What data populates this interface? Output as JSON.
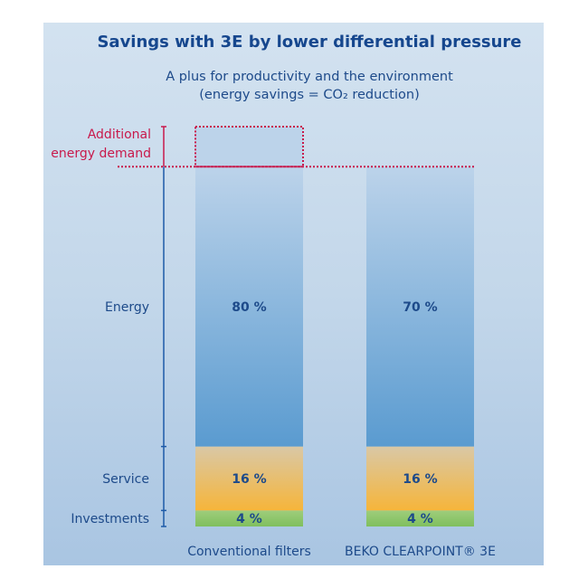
{
  "chart_data": {
    "type": "bar",
    "stacked": true,
    "title": "Savings with 3E by lower differential pressure",
    "subtitle_line1": "A plus for productivity and the environment",
    "subtitle_line2": "(energy savings = CO₂ reduction)",
    "categories": [
      "Conventional filters",
      "BEKO CLEARPOINT® 3E"
    ],
    "series": [
      {
        "name": "Investments",
        "values": [
          4,
          4
        ],
        "labels": [
          "4 %",
          "4 %"
        ],
        "color": "#8cc56a"
      },
      {
        "name": "Service",
        "values": [
          16,
          16
        ],
        "labels": [
          "16 %",
          "16 %"
        ],
        "color": "#f4b640"
      },
      {
        "name": "Energy",
        "values": [
          80,
          70
        ],
        "labels": [
          "80 %",
          "70 %"
        ],
        "color": "#5a9bd0"
      }
    ],
    "additional_label": "Additional energy demand",
    "additional_label_line1": "Additional",
    "additional_label_line2": "energy demand",
    "additional_value": 10,
    "additional_color": "#c8194b",
    "ylim": [
      0,
      100
    ],
    "grid": false,
    "legend": "none"
  }
}
